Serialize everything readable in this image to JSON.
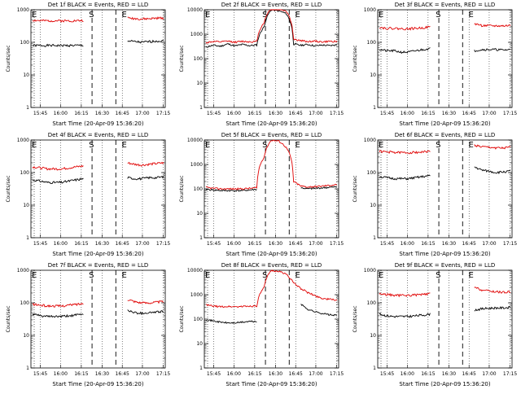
{
  "chart_data": [
    {
      "type": "line",
      "title": "Det 1f BLACK = Events, RED = LLD",
      "xlabel": "Start Time (20-Apr-09 15:36:20)",
      "ylabel": "Counts/sec",
      "yscale": "log",
      "ylim": [
        1,
        1000
      ],
      "yticks": [
        "1",
        "10",
        "100",
        "1000"
      ],
      "xticks": [
        "15:45",
        "16:00",
        "16:15",
        "16:30",
        "16:45",
        "17:00",
        "17:15"
      ],
      "markers": [
        "S",
        "E"
      ],
      "series": [
        {
          "name": "Events",
          "color": "#000000",
          "values": [
            80,
            80,
            80,
            80,
            80,
            80,
            80,
            80,
            null,
            null,
            null,
            null,
            null,
            110,
            105,
            100,
            105,
            110,
            110
          ]
        },
        {
          "name": "LLD",
          "color": "#e00000",
          "values": [
            480,
            460,
            460,
            460,
            460,
            460,
            460,
            470,
            null,
            null,
            null,
            null,
            null,
            560,
            540,
            520,
            530,
            550,
            560
          ]
        }
      ]
    },
    {
      "type": "line",
      "title": "Det 2f BLACK = Events, RED = LLD",
      "xlabel": "Start Time (20-Apr-09 15:36:20)",
      "ylabel": "Counts/sec",
      "yscale": "log",
      "ylim": [
        1,
        10000
      ],
      "yticks": [
        "1",
        "10",
        "100",
        "1000",
        "10000"
      ],
      "xticks": [
        "15:45",
        "16:00",
        "16:15",
        "16:30",
        "16:45",
        "17:00",
        "17:15"
      ],
      "markers": [
        "S",
        "E"
      ],
      "series": [
        {
          "name": "Events",
          "color": "#000000",
          "values": [
            300,
            350,
            320,
            400,
            330,
            380,
            340,
            360,
            2000,
            10000,
            9000,
            7000,
            400,
            350,
            380,
            330,
            360,
            340,
            370
          ]
        },
        {
          "name": "LLD",
          "color": "#e00000",
          "values": [
            450,
            500,
            480,
            520,
            470,
            510,
            490,
            500,
            3000,
            12000,
            11000,
            9000,
            600,
            550,
            500,
            520,
            480,
            510,
            500
          ]
        }
      ]
    },
    {
      "type": "line",
      "title": "Det 3f BLACK = Events, RED = LLD",
      "xlabel": "Start Time (20-Apr-09 15:36:20)",
      "ylabel": "Counts/sec",
      "yscale": "log",
      "ylim": [
        1,
        1000
      ],
      "yticks": [
        "1",
        "10",
        "100",
        "1000"
      ],
      "xticks": [
        "15:45",
        "16:00",
        "16:15",
        "16:30",
        "16:45",
        "17:00",
        "17:15"
      ],
      "markers": [
        "S",
        "E"
      ],
      "series": [
        {
          "name": "Events",
          "color": "#000000",
          "values": [
            60,
            55,
            55,
            50,
            50,
            55,
            60,
            65,
            null,
            null,
            null,
            null,
            null,
            55,
            60,
            60,
            60,
            58,
            60
          ]
        },
        {
          "name": "LLD",
          "color": "#e00000",
          "values": [
            290,
            270,
            270,
            260,
            260,
            270,
            280,
            300,
            null,
            null,
            null,
            null,
            null,
            380,
            330,
            320,
            320,
            320,
            330
          ]
        }
      ]
    },
    {
      "type": "line",
      "title": "Det 4f BLACK = Events, RED = LLD",
      "xlabel": "Start Time (20-Apr-09 15:36:20)",
      "ylabel": "Counts/sec",
      "yscale": "log",
      "ylim": [
        1,
        1000
      ],
      "yticks": [
        "1",
        "10",
        "100",
        "1000"
      ],
      "xticks": [
        "15:45",
        "16:00",
        "16:15",
        "16:30",
        "16:45",
        "17:00",
        "17:15"
      ],
      "markers": [
        "S",
        "E"
      ],
      "series": [
        {
          "name": "Events",
          "color": "#000000",
          "values": [
            60,
            55,
            50,
            50,
            50,
            55,
            60,
            65,
            null,
            null,
            null,
            null,
            null,
            70,
            65,
            65,
            70,
            70,
            75
          ]
        },
        {
          "name": "LLD",
          "color": "#e00000",
          "values": [
            150,
            140,
            130,
            130,
            130,
            140,
            150,
            160,
            null,
            null,
            null,
            null,
            null,
            200,
            180,
            170,
            180,
            190,
            200
          ]
        }
      ]
    },
    {
      "type": "line",
      "title": "Det 5f BLACK = Events, RED = LLD",
      "xlabel": "Start Time (20-Apr-09 15:36:20)",
      "ylabel": "Counts/sec",
      "yscale": "log",
      "ylim": [
        1,
        10000
      ],
      "yticks": [
        "1",
        "10",
        "100",
        "1000",
        "10000"
      ],
      "xticks": [
        "15:45",
        "16:00",
        "16:15",
        "16:30",
        "16:45",
        "17:00",
        "17:15"
      ],
      "markers": [
        "S",
        "E"
      ],
      "series": [
        {
          "name": "Events",
          "color": "#000000",
          "values": [
            95,
            90,
            85,
            85,
            85,
            85,
            90,
            95,
            null,
            null,
            null,
            null,
            null,
            110,
            100,
            105,
            110,
            115,
            120
          ]
        },
        {
          "name": "LLD",
          "color": "#e00000",
          "values": [
            115,
            105,
            100,
            100,
            100,
            100,
            105,
            110,
            2000,
            10000,
            9000,
            5000,
            200,
            130,
            120,
            125,
            130,
            140,
            150
          ]
        }
      ]
    },
    {
      "type": "line",
      "title": "Det 6f BLACK = Events, RED = LLD",
      "xlabel": "Start Time (20-Apr-09 15:36:20)",
      "ylabel": "Counts/sec",
      "yscale": "log",
      "ylim": [
        1,
        1000
      ],
      "yticks": [
        "1",
        "10",
        "100",
        "1000"
      ],
      "xticks": [
        "15:45",
        "16:00",
        "16:15",
        "16:30",
        "16:45",
        "17:00",
        "17:15"
      ],
      "markers": [
        "S",
        "E"
      ],
      "series": [
        {
          "name": "Events",
          "color": "#000000",
          "values": [
            75,
            70,
            65,
            65,
            65,
            70,
            75,
            80,
            null,
            null,
            null,
            null,
            null,
            150,
            120,
            110,
            100,
            105,
            110
          ]
        },
        {
          "name": "LLD",
          "color": "#e00000",
          "values": [
            450,
            430,
            420,
            410,
            410,
            420,
            430,
            450,
            null,
            null,
            null,
            null,
            null,
            700,
            620,
            600,
            580,
            560,
            600
          ]
        }
      ]
    },
    {
      "type": "line",
      "title": "Det 7f BLACK = Events, RED = LLD",
      "xlabel": "Start Time (20-Apr-09 15:36:20)",
      "ylabel": "Counts/sec",
      "yscale": "log",
      "ylim": [
        1,
        1000
      ],
      "yticks": [
        "1",
        "10",
        "100",
        "1000"
      ],
      "xticks": [
        "15:45",
        "16:00",
        "16:15",
        "16:30",
        "16:45",
        "17:00",
        "17:15"
      ],
      "markers": [
        "S",
        "E"
      ],
      "series": [
        {
          "name": "Events",
          "color": "#000000",
          "values": [
            45,
            40,
            38,
            38,
            38,
            40,
            42,
            45,
            null,
            null,
            null,
            null,
            null,
            60,
            50,
            48,
            50,
            52,
            55
          ]
        },
        {
          "name": "LLD",
          "color": "#e00000",
          "values": [
            90,
            85,
            80,
            80,
            80,
            85,
            90,
            95,
            null,
            null,
            null,
            null,
            null,
            130,
            110,
            100,
            100,
            105,
            110
          ]
        }
      ]
    },
    {
      "type": "line",
      "title": "Det 8f BLACK = Events, RED = LLD",
      "xlabel": "Start Time (20-Apr-09 15:36:20)",
      "ylabel": "Counts/sec",
      "yscale": "log",
      "ylim": [
        1,
        10000
      ],
      "yticks": [
        "1",
        "10",
        "100",
        "1000",
        "10000"
      ],
      "xticks": [
        "15:45",
        "16:00",
        "16:15",
        "16:30",
        "16:45",
        "17:00",
        "17:15"
      ],
      "markers": [
        "S",
        "E"
      ],
      "series": [
        {
          "name": "Events",
          "color": "#000000",
          "values": [
            95,
            85,
            75,
            70,
            70,
            75,
            80,
            80,
            null,
            null,
            null,
            null,
            null,
            400,
            250,
            200,
            170,
            150,
            140
          ]
        },
        {
          "name": "LLD",
          "color": "#e00000",
          "values": [
            380,
            340,
            320,
            330,
            320,
            330,
            340,
            350,
            2000,
            10000,
            9000,
            7000,
            3000,
            1800,
            1200,
            900,
            700,
            650,
            600
          ]
        }
      ]
    },
    {
      "type": "line",
      "title": "Det 9f BLACK = Events, RED = LLD",
      "xlabel": "Start Time (20-Apr-09 15:36:20)",
      "ylabel": "Counts/sec",
      "yscale": "log",
      "ylim": [
        1,
        1000
      ],
      "yticks": [
        "1",
        "10",
        "100",
        "1000"
      ],
      "xticks": [
        "15:45",
        "16:00",
        "16:15",
        "16:30",
        "16:45",
        "17:00",
        "17:15"
      ],
      "markers": [
        "S",
        "E"
      ],
      "series": [
        {
          "name": "Events",
          "color": "#000000",
          "values": [
            45,
            40,
            38,
            38,
            38,
            40,
            42,
            45,
            null,
            null,
            null,
            null,
            null,
            60,
            65,
            68,
            70,
            70,
            72
          ]
        },
        {
          "name": "LLD",
          "color": "#e00000",
          "values": [
            190,
            180,
            170,
            170,
            170,
            175,
            180,
            190,
            null,
            null,
            null,
            null,
            null,
            300,
            250,
            230,
            220,
            210,
            220
          ]
        }
      ]
    }
  ]
}
